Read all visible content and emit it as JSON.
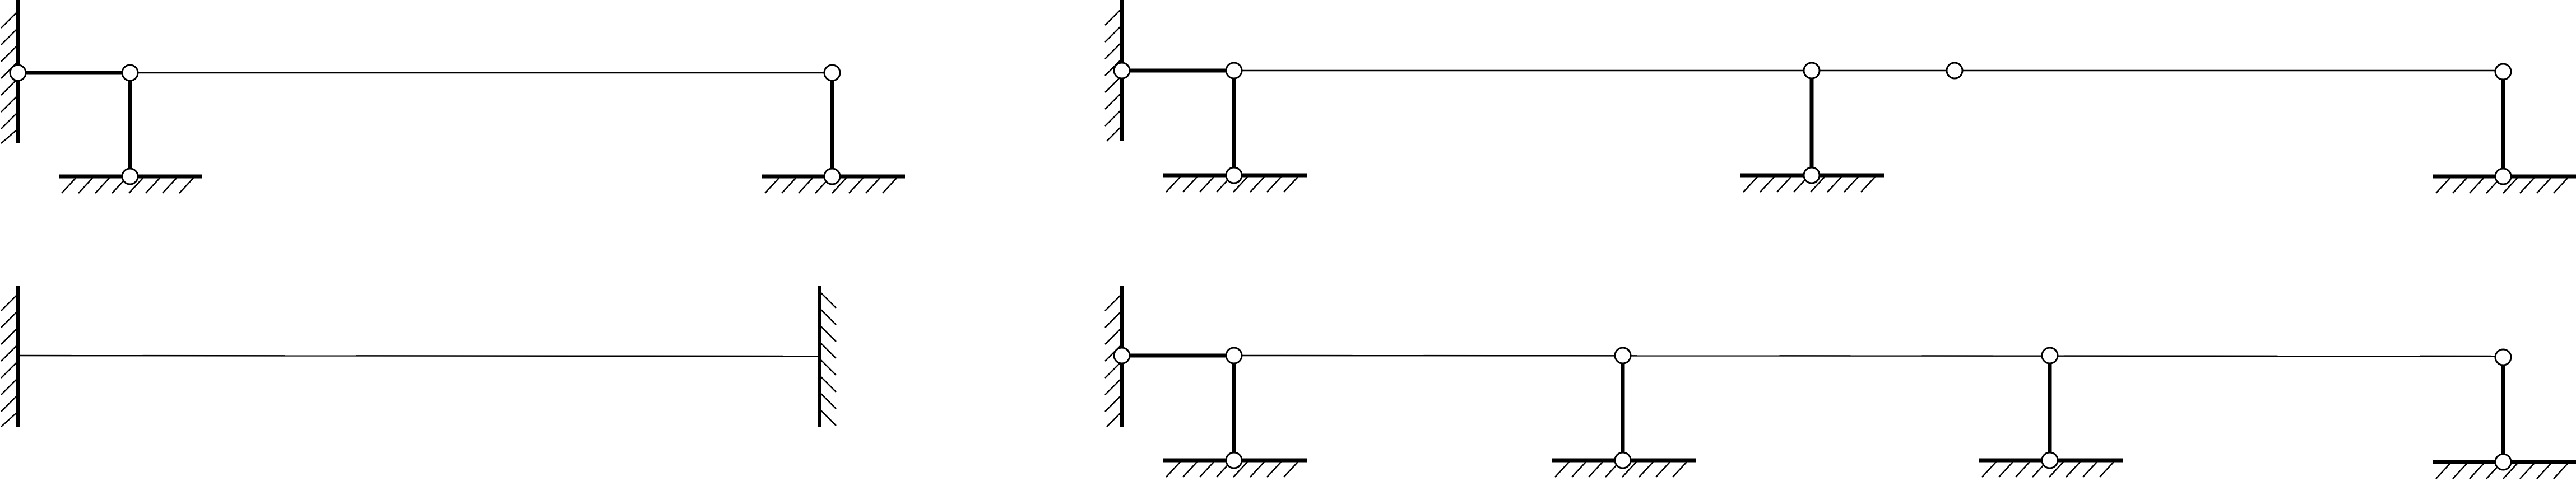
{
  "diagrams": [
    {
      "name": "frame-top-left"
    },
    {
      "name": "fixed-fixed-beam-bottom-left"
    },
    {
      "name": "frame-top-right"
    },
    {
      "name": "frame-bottom-right"
    }
  ],
  "colors": {
    "line": "#000000",
    "hinge_fill": "#ffffff",
    "background": "#ffffff"
  }
}
